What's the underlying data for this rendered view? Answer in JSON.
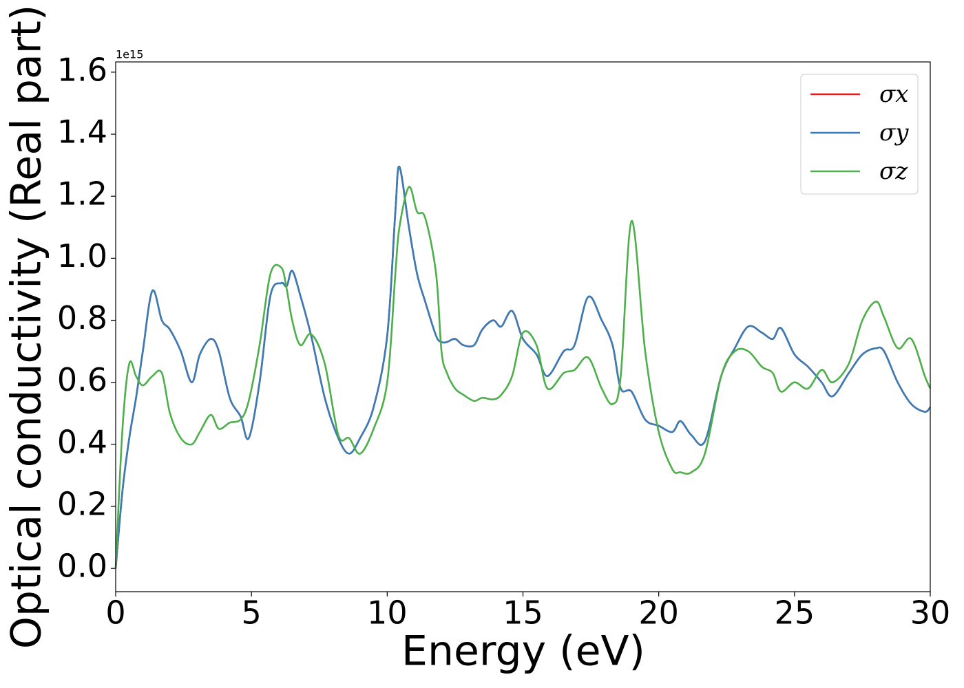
{
  "chart_data": {
    "type": "line",
    "x_label": "Energy (eV)",
    "y_label": "Optical conductivity (Real part)",
    "y_offset_label": "1e15",
    "x": [
      0,
      0.25,
      0.5,
      0.75,
      1.0,
      1.35,
      1.7,
      2.0,
      2.4,
      2.8,
      3.1,
      3.5,
      3.8,
      4.2,
      4.6,
      4.9,
      5.3,
      5.7,
      6.1,
      6.3,
      6.5,
      6.8,
      7.2,
      7.7,
      8.2,
      8.6,
      9.0,
      9.5,
      10.0,
      10.3,
      10.45,
      10.8,
      11.1,
      11.4,
      11.8,
      12.0,
      12.2,
      12.5,
      12.8,
      13.2,
      13.5,
      13.9,
      14.2,
      14.6,
      15.0,
      15.5,
      15.9,
      16.5,
      16.9,
      17.4,
      17.9,
      18.3,
      18.6,
      19.0,
      19.5,
      20.0,
      20.5,
      20.8,
      21.2,
      21.7,
      22.3,
      22.8,
      23.3,
      23.8,
      24.2,
      24.5,
      25.0,
      25.5,
      26.0,
      26.4,
      27.0,
      27.5,
      28.0,
      28.3,
      28.8,
      29.3,
      29.8,
      30.0
    ],
    "series": [
      {
        "name": "σx",
        "color": "#e41a1c",
        "values": [
          0,
          0.25,
          0.42,
          0.55,
          0.7,
          0.895,
          0.8,
          0.77,
          0.7,
          0.6,
          0.69,
          0.74,
          0.7,
          0.55,
          0.49,
          0.42,
          0.6,
          0.88,
          0.92,
          0.91,
          0.96,
          0.88,
          0.75,
          0.55,
          0.42,
          0.37,
          0.42,
          0.52,
          0.75,
          1.15,
          1.295,
          1.1,
          0.95,
          0.86,
          0.75,
          0.73,
          0.73,
          0.74,
          0.72,
          0.72,
          0.77,
          0.8,
          0.78,
          0.83,
          0.74,
          0.69,
          0.62,
          0.7,
          0.72,
          0.875,
          0.8,
          0.72,
          0.58,
          0.57,
          0.48,
          0.46,
          0.44,
          0.475,
          0.43,
          0.41,
          0.62,
          0.71,
          0.78,
          0.76,
          0.74,
          0.775,
          0.69,
          0.65,
          0.6,
          0.555,
          0.63,
          0.69,
          0.71,
          0.7,
          0.6,
          0.53,
          0.505,
          0.52
        ]
      },
      {
        "name": "σy",
        "color": "#377eb8",
        "values": [
          0,
          0.25,
          0.42,
          0.55,
          0.7,
          0.895,
          0.8,
          0.77,
          0.7,
          0.6,
          0.69,
          0.74,
          0.7,
          0.55,
          0.49,
          0.42,
          0.6,
          0.88,
          0.92,
          0.91,
          0.96,
          0.88,
          0.75,
          0.55,
          0.42,
          0.37,
          0.42,
          0.52,
          0.75,
          1.15,
          1.295,
          1.1,
          0.95,
          0.86,
          0.75,
          0.73,
          0.73,
          0.74,
          0.72,
          0.72,
          0.77,
          0.8,
          0.78,
          0.83,
          0.74,
          0.69,
          0.62,
          0.7,
          0.72,
          0.875,
          0.8,
          0.72,
          0.58,
          0.57,
          0.48,
          0.46,
          0.44,
          0.475,
          0.43,
          0.41,
          0.62,
          0.71,
          0.78,
          0.76,
          0.74,
          0.775,
          0.69,
          0.65,
          0.6,
          0.555,
          0.63,
          0.69,
          0.71,
          0.7,
          0.6,
          0.53,
          0.505,
          0.52
        ]
      },
      {
        "name": "σz",
        "color": "#4daf4a",
        "values": [
          0,
          0.45,
          0.66,
          0.62,
          0.59,
          0.62,
          0.63,
          0.5,
          0.42,
          0.4,
          0.44,
          0.495,
          0.45,
          0.47,
          0.48,
          0.54,
          0.72,
          0.95,
          0.97,
          0.9,
          0.8,
          0.72,
          0.755,
          0.66,
          0.43,
          0.42,
          0.37,
          0.45,
          0.6,
          0.95,
          1.1,
          1.23,
          1.15,
          1.13,
          0.95,
          0.7,
          0.63,
          0.58,
          0.56,
          0.54,
          0.55,
          0.545,
          0.56,
          0.62,
          0.76,
          0.72,
          0.58,
          0.63,
          0.64,
          0.68,
          0.58,
          0.53,
          0.62,
          1.12,
          0.7,
          0.44,
          0.32,
          0.31,
          0.31,
          0.37,
          0.62,
          0.7,
          0.7,
          0.65,
          0.63,
          0.57,
          0.6,
          0.58,
          0.64,
          0.6,
          0.66,
          0.8,
          0.86,
          0.81,
          0.71,
          0.74,
          0.62,
          0.58
        ]
      }
    ],
    "xlim": [
      0,
      30
    ],
    "xticks": [
      0,
      5,
      10,
      15,
      20,
      25,
      30
    ],
    "ylim": [
      -0.075,
      1.633
    ],
    "yticks": [
      {
        "value": 0,
        "label": "0.0"
      },
      0.2,
      0.4,
      0.6,
      0.8,
      {
        "value": 1,
        "label": "1.0"
      },
      1.2,
      1.4,
      1.6
    ],
    "legend": "upper right",
    "grid": false
  }
}
